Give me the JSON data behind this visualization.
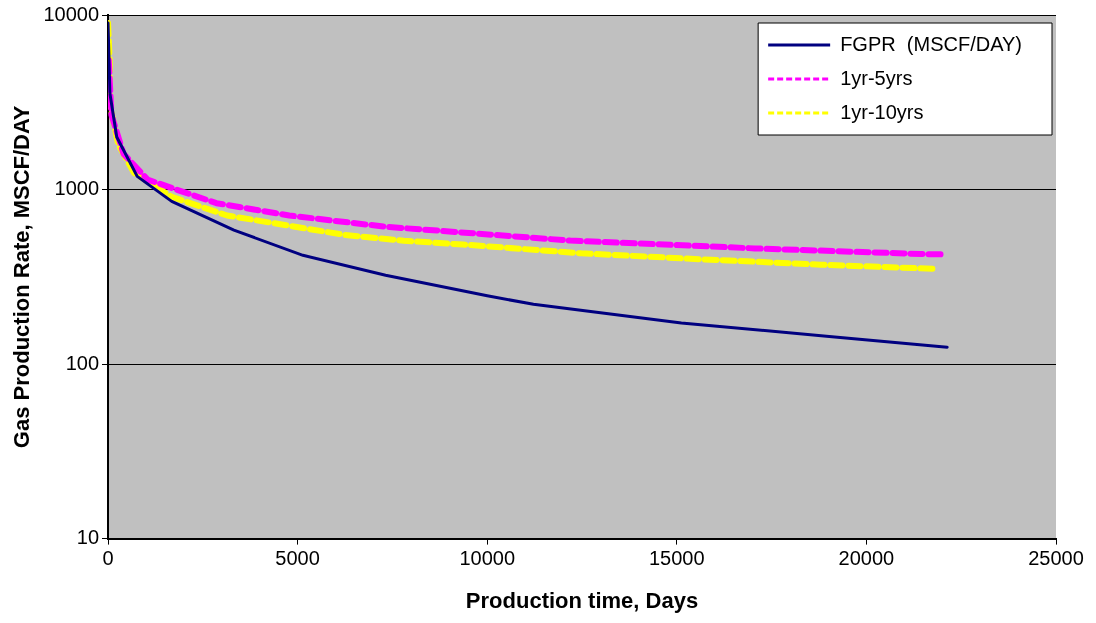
{
  "chart_data": {
    "type": "line",
    "xlabel": "Production time, Days",
    "ylabel": "Gas Production Rate, MSCF/DAY",
    "xlim": [
      0,
      25000
    ],
    "xticks": [
      0,
      5000,
      10000,
      15000,
      20000,
      25000
    ],
    "ylim": [
      10,
      10000
    ],
    "yticks": [
      10,
      100,
      1000,
      10000
    ],
    "log": "y",
    "grid": "y",
    "legend": "top right",
    "series": [
      {
        "name": "FGPR  (MSCF/DAY)",
        "color": "#000080",
        "line_style": "solid",
        "x": [
          0,
          50,
          230,
          770,
          1680,
          3320,
          5140,
          7320,
          10000,
          11220,
          15120,
          19020,
          22130
        ],
        "values": [
          9000,
          3550,
          2000,
          1190,
          855,
          585,
          420,
          323,
          246,
          220,
          172,
          144,
          125
        ]
      },
      {
        "name": "1yr-5yrs",
        "color": "#ff00ff",
        "line_style": "dashed",
        "x": [
          20,
          90,
          410,
          1045,
          1860,
          2860,
          4780,
          7320,
          12190,
          17060,
          21450,
          22000
        ],
        "values": [
          5500,
          2680,
          1600,
          1140,
          990,
          835,
          710,
          612,
          510,
          460,
          427,
          425
        ]
      },
      {
        "name": "1yr-10yrs",
        "color": "#ffff00",
        "line_style": "dashed",
        "x": [
          0,
          45,
          45,
          270,
          680,
          1680,
          3140,
          6230,
          7800,
          9370,
          12480,
          15700,
          18800,
          21850
        ],
        "values": [
          9000,
          5400,
          3100,
          1810,
          1250,
          908,
          710,
          550,
          509,
          484,
          431,
          398,
          371,
          351
        ]
      }
    ]
  }
}
